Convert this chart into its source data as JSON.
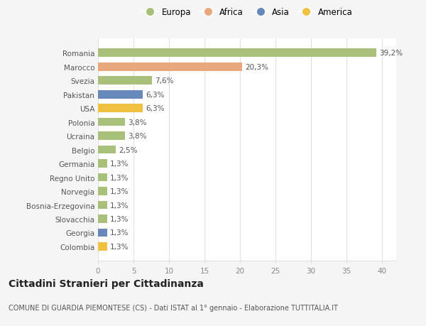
{
  "categories": [
    "Colombia",
    "Georgia",
    "Slovacchia",
    "Bosnia-Erzegovina",
    "Norvegia",
    "Regno Unito",
    "Germania",
    "Belgio",
    "Ucraina",
    "Polonia",
    "USA",
    "Pakistan",
    "Svezia",
    "Marocco",
    "Romania"
  ],
  "values": [
    1.3,
    1.3,
    1.3,
    1.3,
    1.3,
    1.3,
    1.3,
    2.5,
    3.8,
    3.8,
    6.3,
    6.3,
    7.6,
    20.3,
    39.2
  ],
  "labels": [
    "1,3%",
    "1,3%",
    "1,3%",
    "1,3%",
    "1,3%",
    "1,3%",
    "1,3%",
    "2,5%",
    "3,8%",
    "3,8%",
    "6,3%",
    "6,3%",
    "7,6%",
    "20,3%",
    "39,2%"
  ],
  "colors": [
    "#f0c040",
    "#6688bb",
    "#a8c07a",
    "#a8c07a",
    "#a8c07a",
    "#a8c07a",
    "#a8c07a",
    "#a8c07a",
    "#a8c07a",
    "#a8c07a",
    "#f0c040",
    "#6688bb",
    "#a8c07a",
    "#e8a87c",
    "#a8c07a"
  ],
  "continent_colors": {
    "Europa": "#a8c07a",
    "Africa": "#e8a87c",
    "Asia": "#6688bb",
    "America": "#f0c040"
  },
  "title": "Cittadini Stranieri per Cittadinanza",
  "subtitle": "COMUNE DI GUARDIA PIEMONTESE (CS) - Dati ISTAT al 1° gennaio - Elaborazione TUTTITALIA.IT",
  "xlim": [
    0,
    42
  ],
  "xticks": [
    0,
    5,
    10,
    15,
    20,
    25,
    30,
    35,
    40
  ],
  "bg_color": "#f5f5f5",
  "plot_bg_color": "#ffffff",
  "grid_color": "#e0e0e0",
  "bar_height": 0.6,
  "title_fontsize": 10,
  "subtitle_fontsize": 7,
  "label_fontsize": 7.5,
  "tick_fontsize": 7.5,
  "legend_fontsize": 8.5
}
